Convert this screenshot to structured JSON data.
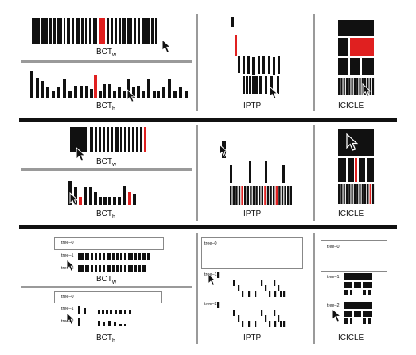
{
  "labels": {
    "bct": "BCT",
    "sub_w": "w",
    "sub_h": "h",
    "iptp": "IPTP",
    "icicle": "ICICLE"
  },
  "tree_labels": [
    "tree–0",
    "tree–1",
    "tree–2"
  ],
  "colors": {
    "bar": "#111111",
    "highlight": "#e02020",
    "divider_gray": "#9a9a9a",
    "divider_black": "#111111"
  },
  "icons": [
    "cursor-arrow-icon"
  ]
}
